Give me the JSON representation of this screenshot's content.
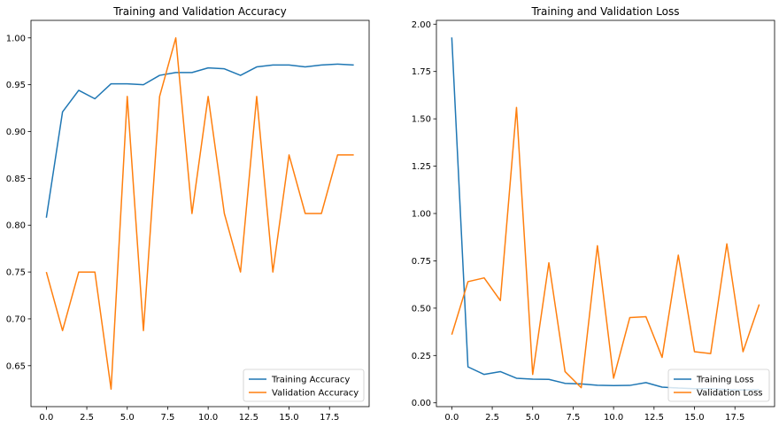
{
  "colors": {
    "training": "#1f77b4",
    "validation": "#ff7f0e",
    "axes": "#000000",
    "legend_border": "#cccccc"
  },
  "chart_data": [
    {
      "type": "line",
      "title": "Training and Validation Accuracy",
      "xlabel": "",
      "ylabel": "",
      "xlim": [
        -0.95,
        19.95
      ],
      "ylim": [
        0.6063,
        1.0187
      ],
      "xticks": [
        0,
        2.5,
        5,
        7.5,
        10,
        12.5,
        15,
        17.5
      ],
      "xtick_labels": [
        "0.0",
        "2.5",
        "5.0",
        "7.5",
        "10.0",
        "12.5",
        "15.0",
        "17.5"
      ],
      "yticks": [
        0.65,
        0.7,
        0.75,
        0.8,
        0.85,
        0.9,
        0.95,
        1.0
      ],
      "ytick_labels": [
        "0.65",
        "0.70",
        "0.75",
        "0.80",
        "0.85",
        "0.90",
        "0.95",
        "1.00"
      ],
      "grid": false,
      "legend_position": "lower right",
      "x": [
        0,
        1,
        2,
        3,
        4,
        5,
        6,
        7,
        8,
        9,
        10,
        11,
        12,
        13,
        14,
        15,
        16,
        17,
        18,
        19
      ],
      "series": [
        {
          "name": "Training Accuracy",
          "color": "#1f77b4",
          "values": [
            0.808,
            0.921,
            0.944,
            0.935,
            0.951,
            0.951,
            0.95,
            0.96,
            0.963,
            0.963,
            0.968,
            0.967,
            0.96,
            0.969,
            0.971,
            0.971,
            0.969,
            0.971,
            0.972,
            0.971
          ]
        },
        {
          "name": "Validation Accuracy",
          "color": "#ff7f0e",
          "values": [
            0.75,
            0.6875,
            0.75,
            0.75,
            0.625,
            0.9375,
            0.6875,
            0.9375,
            1.0,
            0.8125,
            0.9375,
            0.8125,
            0.75,
            0.9375,
            0.75,
            0.875,
            0.8125,
            0.8125,
            0.875,
            0.875
          ]
        }
      ]
    },
    {
      "type": "line",
      "title": "Training and Validation Loss",
      "xlabel": "",
      "ylabel": "",
      "xlim": [
        -0.95,
        19.95
      ],
      "ylim": [
        -0.02,
        2.02
      ],
      "xticks": [
        0,
        2.5,
        5,
        7.5,
        10,
        12.5,
        15,
        17.5
      ],
      "xtick_labels": [
        "0.0",
        "2.5",
        "5.0",
        "7.5",
        "10.0",
        "12.5",
        "15.0",
        "17.5"
      ],
      "yticks": [
        0.0,
        0.25,
        0.5,
        0.75,
        1.0,
        1.25,
        1.5,
        1.75,
        2.0
      ],
      "ytick_labels": [
        "0.00",
        "0.25",
        "0.50",
        "0.75",
        "1.00",
        "1.25",
        "1.50",
        "1.75",
        "2.00"
      ],
      "grid": false,
      "legend_position": "lower right",
      "x": [
        0,
        1,
        2,
        3,
        4,
        5,
        6,
        7,
        8,
        9,
        10,
        11,
        12,
        13,
        14,
        15,
        16,
        17,
        18,
        19
      ],
      "series": [
        {
          "name": "Training Loss",
          "color": "#1f77b4",
          "values": [
            1.93,
            0.19,
            0.15,
            0.165,
            0.13,
            0.125,
            0.124,
            0.103,
            0.1,
            0.093,
            0.091,
            0.092,
            0.107,
            0.083,
            0.078,
            0.075,
            0.075,
            0.07,
            0.068,
            0.07
          ]
        },
        {
          "name": "Validation Loss",
          "color": "#ff7f0e",
          "values": [
            0.36,
            0.64,
            0.66,
            0.54,
            1.56,
            0.15,
            0.74,
            0.165,
            0.08,
            0.83,
            0.13,
            0.45,
            0.455,
            0.24,
            0.78,
            0.27,
            0.26,
            0.84,
            0.27,
            0.52
          ]
        }
      ]
    }
  ]
}
